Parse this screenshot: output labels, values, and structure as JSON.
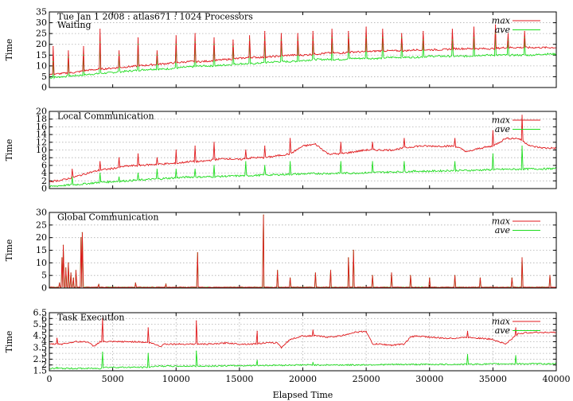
{
  "colors": {
    "max": "#e0191c",
    "ave": "#1fdc1f"
  },
  "chart_data": [
    {
      "type": "line",
      "title": "Tue Jan 1 2008 : atlas671 : 1024 Processors",
      "subtitle": "Waiting",
      "ylabel": "Time",
      "xlabel": "",
      "xlim": [
        0,
        40000
      ],
      "ylim": [
        0,
        35
      ],
      "yticks": [
        0,
        5,
        10,
        15,
        20,
        25,
        30,
        35
      ],
      "xticks": [],
      "grid": true,
      "legend": "top-right",
      "series": [
        {
          "name": "max",
          "x": [
            0,
            1000,
            2000,
            3000,
            4000,
            5000,
            6000,
            7000,
            8000,
            9000,
            10000,
            11000,
            12000,
            13000,
            14000,
            15000,
            16000,
            17000,
            18000,
            19000,
            20000,
            21000,
            22000,
            23000,
            24000,
            25000,
            26000,
            27000,
            28000,
            29000,
            30000,
            31000,
            32000,
            33000,
            34000,
            35000,
            36000,
            37000,
            38000,
            39000,
            40000
          ],
          "values": [
            6,
            6.5,
            7,
            8,
            8.5,
            9,
            9.5,
            10,
            10.5,
            11,
            11.5,
            12,
            12,
            12.5,
            13,
            13.5,
            14,
            14,
            14.5,
            15,
            15,
            15.5,
            16,
            16,
            16.5,
            16.5,
            17,
            17,
            17,
            17.5,
            17.5,
            17.5,
            18,
            18,
            18,
            18,
            18.5,
            18.5,
            18.5,
            18.5,
            18.5
          ]
        },
        {
          "name": "ave",
          "x": [
            0,
            1000,
            2000,
            3000,
            4000,
            5000,
            6000,
            7000,
            8000,
            9000,
            10000,
            11000,
            12000,
            13000,
            14000,
            15000,
            16000,
            17000,
            18000,
            19000,
            20000,
            21000,
            22000,
            23000,
            24000,
            25000,
            26000,
            27000,
            28000,
            29000,
            30000,
            31000,
            32000,
            33000,
            34000,
            35000,
            36000,
            37000,
            38000,
            39000,
            40000
          ],
          "values": [
            4.5,
            5,
            5.5,
            6,
            6.5,
            7,
            7.5,
            8,
            8.5,
            8.5,
            9,
            9.5,
            10,
            10,
            10.5,
            11,
            11,
            11.5,
            12,
            12,
            12.5,
            13,
            13,
            13,
            13.5,
            13.5,
            13.5,
            14,
            14,
            14,
            14.5,
            14.5,
            14.5,
            14.5,
            15,
            15,
            15,
            15,
            15,
            15.5,
            15.5
          ]
        }
      ],
      "spikes": [
        {
          "x": 300,
          "max": 19,
          "ave": 12
        },
        {
          "x": 1500,
          "max": 17,
          "ave": 14
        },
        {
          "x": 2700,
          "max": 19,
          "ave": 15
        },
        {
          "x": 4000,
          "max": 27,
          "ave": 21
        },
        {
          "x": 5500,
          "max": 17,
          "ave": 15
        },
        {
          "x": 7000,
          "max": 23,
          "ave": 20
        },
        {
          "x": 8500,
          "max": 17,
          "ave": 15
        },
        {
          "x": 10000,
          "max": 24,
          "ave": 20
        },
        {
          "x": 11500,
          "max": 25,
          "ave": 21
        },
        {
          "x": 13000,
          "max": 23,
          "ave": 20
        },
        {
          "x": 14500,
          "max": 22,
          "ave": 19
        },
        {
          "x": 15800,
          "max": 24,
          "ave": 22
        },
        {
          "x": 17000,
          "max": 26,
          "ave": 22
        },
        {
          "x": 18300,
          "max": 25,
          "ave": 22
        },
        {
          "x": 19600,
          "max": 25,
          "ave": 22
        },
        {
          "x": 20800,
          "max": 26,
          "ave": 22
        },
        {
          "x": 22300,
          "max": 27,
          "ave": 23
        },
        {
          "x": 23600,
          "max": 26,
          "ave": 23
        },
        {
          "x": 25000,
          "max": 28,
          "ave": 23
        },
        {
          "x": 26300,
          "max": 27,
          "ave": 23
        },
        {
          "x": 27800,
          "max": 25,
          "ave": 23
        },
        {
          "x": 29500,
          "max": 26,
          "ave": 22
        },
        {
          "x": 31800,
          "max": 27,
          "ave": 22
        },
        {
          "x": 33500,
          "max": 28,
          "ave": 23
        },
        {
          "x": 35200,
          "max": 29,
          "ave": 25
        },
        {
          "x": 36200,
          "max": 25,
          "ave": 22
        },
        {
          "x": 37500,
          "max": 26,
          "ave": 23
        }
      ]
    },
    {
      "type": "line",
      "title": "Local Communication",
      "ylabel": "Time",
      "xlabel": "",
      "xlim": [
        0,
        40000
      ],
      "ylim": [
        0,
        20
      ],
      "yticks": [
        0,
        2,
        4,
        6,
        8,
        10,
        12,
        14,
        16,
        18,
        20
      ],
      "xticks": [],
      "grid": true,
      "legend": "top-right",
      "series": [
        {
          "name": "max",
          "x": [
            0,
            1000,
            2000,
            3000,
            4000,
            5000,
            6000,
            7000,
            8000,
            9000,
            10000,
            11000,
            12000,
            13000,
            14000,
            15000,
            16000,
            17000,
            18000,
            19000,
            20000,
            21000,
            22000,
            23000,
            24000,
            25000,
            26000,
            27000,
            28000,
            29000,
            30000,
            31000,
            32000,
            33000,
            34000,
            35000,
            36000,
            37000,
            38000,
            39000,
            40000
          ],
          "values": [
            1.8,
            2.2,
            3,
            4,
            4.8,
            5.2,
            5.8,
            6,
            6.2,
            6.4,
            6.5,
            7,
            7,
            7.5,
            7.8,
            7.5,
            8,
            8,
            8.5,
            9,
            11,
            11.5,
            9,
            9,
            9.5,
            10,
            10,
            10,
            10.5,
            11,
            11,
            11,
            11,
            9.5,
            10.5,
            11,
            13,
            13,
            11,
            10.5,
            10.5
          ]
        },
        {
          "name": "ave",
          "x": [
            0,
            1000,
            2000,
            3000,
            4000,
            5000,
            6000,
            7000,
            8000,
            9000,
            10000,
            11000,
            12000,
            13000,
            14000,
            15000,
            16000,
            17000,
            18000,
            19000,
            20000,
            21000,
            22000,
            23000,
            24000,
            25000,
            26000,
            27000,
            28000,
            29000,
            30000,
            31000,
            32000,
            33000,
            34000,
            35000,
            36000,
            37000,
            38000,
            39000,
            40000
          ],
          "values": [
            0.5,
            0.8,
            1,
            1.3,
            1.6,
            1.8,
            2,
            2.2,
            2.4,
            2.6,
            2.8,
            3,
            3,
            3.1,
            3.2,
            3.3,
            3.4,
            3.5,
            3.6,
            3.7,
            3.8,
            3.9,
            3.9,
            4,
            4,
            4.1,
            4.2,
            4.3,
            4.4,
            4.5,
            4.5,
            4.6,
            4.7,
            4.7,
            4.8,
            4.9,
            5,
            5,
            5.1,
            5.1,
            5.2
          ]
        }
      ],
      "spikes": [
        {
          "x": 1800,
          "max": 5,
          "ave": 3
        },
        {
          "x": 4000,
          "max": 7,
          "ave": 4
        },
        {
          "x": 5500,
          "max": 8,
          "ave": 3
        },
        {
          "x": 7000,
          "max": 9,
          "ave": 4
        },
        {
          "x": 8500,
          "max": 8,
          "ave": 5
        },
        {
          "x": 10000,
          "max": 10,
          "ave": 5
        },
        {
          "x": 11500,
          "max": 11,
          "ave": 5
        },
        {
          "x": 13000,
          "max": 12,
          "ave": 6
        },
        {
          "x": 15500,
          "max": 10,
          "ave": 7
        },
        {
          "x": 17000,
          "max": 11,
          "ave": 6
        },
        {
          "x": 19000,
          "max": 13,
          "ave": 7
        },
        {
          "x": 23000,
          "max": 12,
          "ave": 7
        },
        {
          "x": 25500,
          "max": 12,
          "ave": 7
        },
        {
          "x": 28000,
          "max": 13,
          "ave": 7
        },
        {
          "x": 32000,
          "max": 13,
          "ave": 7
        },
        {
          "x": 35000,
          "max": 15,
          "ave": 9
        },
        {
          "x": 37300,
          "max": 19,
          "ave": 11
        }
      ]
    },
    {
      "type": "line",
      "title": "Global Communication",
      "ylabel": "Time",
      "xlabel": "",
      "xlim": [
        0,
        40000
      ],
      "ylim": [
        0,
        30
      ],
      "yticks": [
        0,
        5,
        10,
        15,
        20,
        25,
        30
      ],
      "xticks": [],
      "grid": true,
      "legend": "top-right",
      "series": [
        {
          "name": "max",
          "x": [
            0,
            40000
          ],
          "values": [
            0.3,
            0.3
          ]
        },
        {
          "name": "ave",
          "x": [
            0,
            40000
          ],
          "values": [
            0.3,
            0.3
          ]
        }
      ],
      "spikes": [
        {
          "x": 800,
          "max": 2,
          "ave": 2
        },
        {
          "x": 1000,
          "max": 12,
          "ave": 12
        },
        {
          "x": 1100,
          "max": 17,
          "ave": 17
        },
        {
          "x": 1300,
          "max": 8,
          "ave": 8
        },
        {
          "x": 1500,
          "max": 10,
          "ave": 10
        },
        {
          "x": 1700,
          "max": 6,
          "ave": 6
        },
        {
          "x": 1900,
          "max": 4,
          "ave": 4
        },
        {
          "x": 2100,
          "max": 7,
          "ave": 7
        },
        {
          "x": 2500,
          "max": 20,
          "ave": 20
        },
        {
          "x": 2600,
          "max": 22,
          "ave": 22
        },
        {
          "x": 3900,
          "max": 1.5,
          "ave": 1.5
        },
        {
          "x": 6800,
          "max": 2,
          "ave": 2
        },
        {
          "x": 9200,
          "max": 1.5,
          "ave": 1.5
        },
        {
          "x": 11700,
          "max": 14,
          "ave": 14
        },
        {
          "x": 16900,
          "max": 29,
          "ave": 29
        },
        {
          "x": 18000,
          "max": 7,
          "ave": 7
        },
        {
          "x": 19000,
          "max": 4,
          "ave": 4
        },
        {
          "x": 21000,
          "max": 6,
          "ave": 6
        },
        {
          "x": 22200,
          "max": 7,
          "ave": 7
        },
        {
          "x": 23600,
          "max": 12,
          "ave": 12
        },
        {
          "x": 24000,
          "max": 15,
          "ave": 15
        },
        {
          "x": 25500,
          "max": 5,
          "ave": 5
        },
        {
          "x": 27000,
          "max": 6,
          "ave": 6
        },
        {
          "x": 28500,
          "max": 5,
          "ave": 5
        },
        {
          "x": 30000,
          "max": 4,
          "ave": 4
        },
        {
          "x": 32000,
          "max": 5,
          "ave": 5
        },
        {
          "x": 34000,
          "max": 4,
          "ave": 4
        },
        {
          "x": 36500,
          "max": 4,
          "ave": 4
        },
        {
          "x": 37300,
          "max": 12,
          "ave": 12
        },
        {
          "x": 39500,
          "max": 5,
          "ave": 5
        }
      ]
    },
    {
      "type": "line",
      "title": "Task Execution",
      "ylabel": "Time",
      "xlabel": "Elapsed Time",
      "xlim": [
        0,
        40000
      ],
      "ylim": [
        1.5,
        6.5
      ],
      "yticks": [
        1.5,
        2,
        2.5,
        3,
        3.5,
        4,
        4.5,
        5,
        5.5,
        6,
        6.5
      ],
      "xticks": [
        0,
        5000,
        10000,
        15000,
        20000,
        25000,
        30000,
        35000,
        40000
      ],
      "grid": true,
      "legend": "top-right",
      "series": [
        {
          "name": "max",
          "x": [
            0,
            1000,
            2000,
            3000,
            3500,
            4000,
            5000,
            6000,
            7000,
            8000,
            8800,
            9000,
            10000,
            11000,
            12000,
            13000,
            14000,
            15000,
            16000,
            17000,
            18000,
            18300,
            19000,
            20000,
            21000,
            22000,
            23000,
            24000,
            25000,
            25500,
            26000,
            27000,
            28000,
            28500,
            29000,
            30000,
            31000,
            32000,
            33000,
            34000,
            35000,
            36000,
            37000,
            38000,
            39000,
            40000
          ],
          "values": [
            3.8,
            3.8,
            4,
            4,
            3.6,
            4,
            4,
            4,
            4,
            3.9,
            3.6,
            3.8,
            3.8,
            3.8,
            3.8,
            3.8,
            3.9,
            3.8,
            3.8,
            3.9,
            3.9,
            3.5,
            4.2,
            4.5,
            4.5,
            4.4,
            4.5,
            4.8,
            4.9,
            3.8,
            3.8,
            3.7,
            3.8,
            4.4,
            4.5,
            4.4,
            4.3,
            4.3,
            4.4,
            4.3,
            4.2,
            3.8,
            4.7,
            4.8,
            4.8,
            4.8
          ]
        },
        {
          "name": "ave",
          "x": [
            0,
            4000,
            4200,
            8000,
            8200,
            12000,
            16000,
            20000,
            24000,
            28000,
            32000,
            36000,
            40000
          ],
          "values": [
            1.7,
            1.7,
            1.8,
            1.8,
            1.9,
            1.9,
            1.95,
            2,
            2,
            2.05,
            2.05,
            2.1,
            2.1
          ]
        }
      ],
      "spikes": [
        {
          "x": 600,
          "max": 4.3,
          "ave": 1.8
        },
        {
          "x": 4200,
          "max": 6,
          "ave": 3.1
        },
        {
          "x": 7800,
          "max": 5.2,
          "ave": 3
        },
        {
          "x": 11600,
          "max": 5.8,
          "ave": 3.2
        },
        {
          "x": 16400,
          "max": 4.9,
          "ave": 2.4
        },
        {
          "x": 20800,
          "max": 5,
          "ave": 2.2
        },
        {
          "x": 33000,
          "max": 4.9,
          "ave": 2.9
        },
        {
          "x": 36800,
          "max": 5.2,
          "ave": 2.8
        }
      ]
    }
  ]
}
